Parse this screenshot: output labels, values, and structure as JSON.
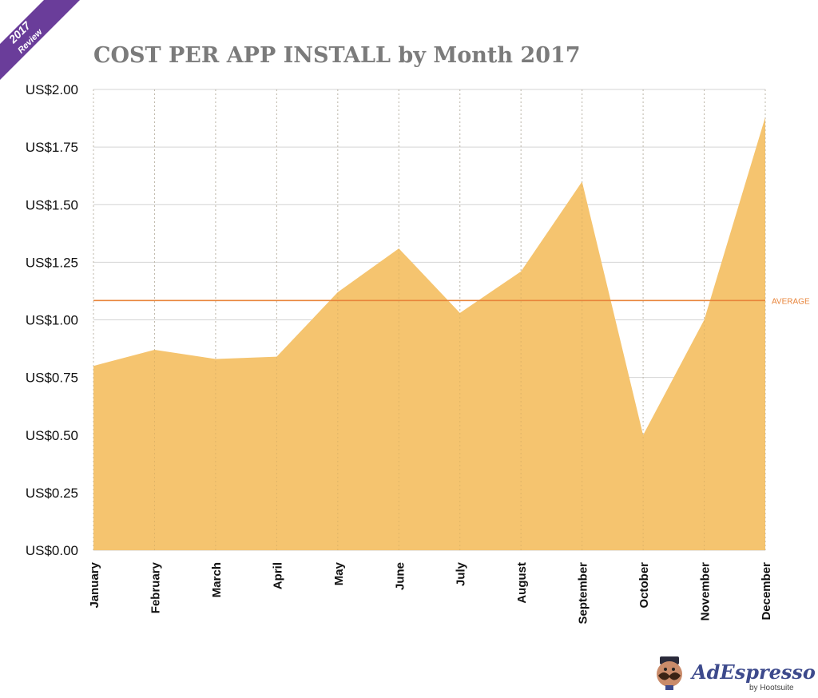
{
  "badge": {
    "year": "2017",
    "label": "Review",
    "color": "#6a3d9a"
  },
  "logo": {
    "brand": "AdEspresso",
    "sub": "by Hootsuite"
  },
  "chart_data": {
    "type": "area",
    "title": "COST PER APP INSTALL by Month 2017",
    "xlabel": "",
    "ylabel": "",
    "categories": [
      "January",
      "February",
      "March",
      "April",
      "May",
      "June",
      "July",
      "August",
      "September",
      "October",
      "November",
      "December"
    ],
    "series": [
      {
        "values": [
          0.8,
          0.87,
          0.83,
          0.84,
          1.12,
          1.31,
          1.03,
          1.21,
          1.6,
          0.5,
          1.0,
          1.88
        ],
        "color": "#f5c46f"
      }
    ],
    "ylim": [
      0,
      2.0
    ],
    "yticks": [
      0,
      0.25,
      0.5,
      0.75,
      1.0,
      1.25,
      1.5,
      1.75,
      2.0
    ],
    "ytick_labels": [
      "US$0.00",
      "US$0.25",
      "US$0.50",
      "US$0.75",
      "US$1.00",
      "US$1.25",
      "US$1.50",
      "US$1.75",
      "US$2.00"
    ],
    "average": {
      "label": "AVERAGE",
      "value": 1.084,
      "color": "#e8843a"
    },
    "grid": {
      "horizontal": true,
      "vertical": true,
      "vertical_style": "dashed"
    }
  }
}
